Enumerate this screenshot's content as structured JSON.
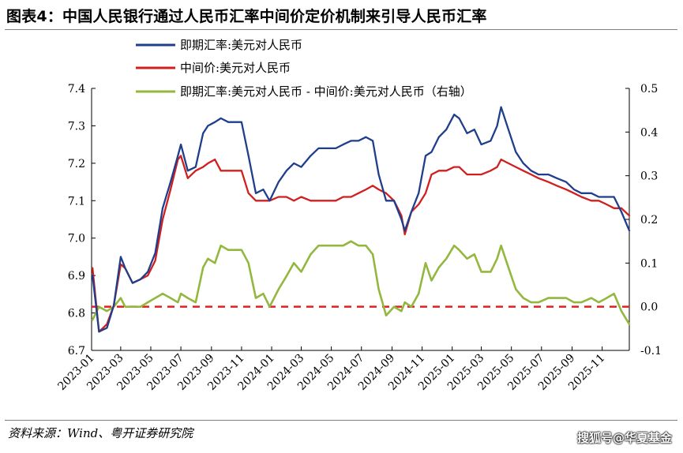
{
  "header": {
    "title": "图表4：中国人民银行通过人民币汇率中间价定价机制来引导人民币汇率"
  },
  "footer": {
    "source": "资料来源：Wind、粤开证券研究院",
    "watermark": "搜狐号@华夏基金"
  },
  "colors": {
    "spot": "#1f3e8c",
    "central": "#d11f1f",
    "spread": "#93b73f",
    "zero_line": "#e02020"
  },
  "chart_data": {
    "type": "line",
    "title": "",
    "xlabel": "",
    "ylabel": "",
    "ylim": [
      6.7,
      7.4
    ],
    "yticks": [
      "7.4",
      "7.3",
      "7.2",
      "7.1",
      "7.0",
      "6.9",
      "6.8",
      "6.7"
    ],
    "y2lim": [
      -0.1,
      0.5
    ],
    "y2ticks": [
      "0.5",
      "0.4",
      "0.3",
      "0.2",
      "0.1",
      "0.0",
      "-0.1"
    ],
    "xticks": [
      "2023-01",
      "2023-03",
      "2023-05",
      "2023-07",
      "2023-09",
      "2023-11",
      "2024-01",
      "2024-03",
      "2024-05",
      "2024-07",
      "2024-09",
      "2024-11",
      "2025-01",
      "2025-03",
      "2025-05",
      "2025-07",
      "2025-09",
      "2025-11"
    ],
    "x_start": "2023-01-01",
    "x_end": "2025-12-26",
    "reference_line": {
      "axis": "right",
      "value": 0.0,
      "style": "dashed"
    },
    "legend_position": "top",
    "series": [
      {
        "name": "即期汇率:美元对人民币",
        "key": "spot",
        "axis": "left",
        "x": [
          "2023-01-03",
          "2023-01-16",
          "2023-02-01",
          "2023-02-15",
          "2023-03-01",
          "2023-03-10",
          "2023-03-25",
          "2023-04-10",
          "2023-04-25",
          "2023-05-10",
          "2023-05-25",
          "2023-06-10",
          "2023-06-25",
          "2023-07-01",
          "2023-07-15",
          "2023-07-31",
          "2023-08-15",
          "2023-08-25",
          "2023-09-08",
          "2023-09-20",
          "2023-10-05",
          "2023-10-20",
          "2023-11-01",
          "2023-11-15",
          "2023-11-30",
          "2023-12-15",
          "2023-12-28",
          "2024-01-15",
          "2024-01-31",
          "2024-02-15",
          "2024-03-01",
          "2024-03-20",
          "2024-04-05",
          "2024-04-20",
          "2024-05-10",
          "2024-05-25",
          "2024-06-10",
          "2024-06-25",
          "2024-07-10",
          "2024-07-24",
          "2024-08-05",
          "2024-08-20",
          "2024-09-05",
          "2024-09-20",
          "2024-09-27",
          "2024-10-10",
          "2024-10-25",
          "2024-11-08",
          "2024-11-20",
          "2024-12-05",
          "2024-12-20",
          "2025-01-05",
          "2025-01-15",
          "2025-01-31",
          "2025-02-15",
          "2025-03-01",
          "2025-03-20",
          "2025-04-02",
          "2025-04-10",
          "2025-04-25",
          "2025-05-10",
          "2025-05-25",
          "2025-06-10",
          "2025-06-25",
          "2025-07-15",
          "2025-08-01",
          "2025-08-20",
          "2025-09-05",
          "2025-09-20",
          "2025-10-10",
          "2025-10-25",
          "2025-11-10",
          "2025-11-25",
          "2025-12-10",
          "2025-12-26"
        ],
        "values": [
          6.9,
          6.75,
          6.76,
          6.82,
          6.95,
          6.92,
          6.88,
          6.89,
          6.91,
          6.96,
          7.08,
          7.15,
          7.22,
          7.25,
          7.18,
          7.19,
          7.28,
          7.3,
          7.31,
          7.32,
          7.31,
          7.31,
          7.31,
          7.22,
          7.12,
          7.13,
          7.1,
          7.15,
          7.18,
          7.2,
          7.19,
          7.22,
          7.24,
          7.24,
          7.24,
          7.25,
          7.26,
          7.26,
          7.27,
          7.26,
          7.17,
          7.1,
          7.1,
          7.05,
          7.02,
          7.07,
          7.12,
          7.22,
          7.23,
          7.27,
          7.29,
          7.33,
          7.32,
          7.28,
          7.29,
          7.25,
          7.26,
          7.3,
          7.35,
          7.29,
          7.23,
          7.2,
          7.18,
          7.17,
          7.17,
          7.16,
          7.15,
          7.13,
          7.12,
          7.12,
          7.11,
          7.11,
          7.11,
          7.07,
          7.02
        ]
      },
      {
        "name": "中间价:美元对人民币",
        "key": "central",
        "axis": "left",
        "x": [
          "2023-01-03",
          "2023-01-16",
          "2023-02-01",
          "2023-02-15",
          "2023-03-01",
          "2023-03-10",
          "2023-03-25",
          "2023-04-10",
          "2023-04-25",
          "2023-05-10",
          "2023-05-25",
          "2023-06-10",
          "2023-06-25",
          "2023-07-01",
          "2023-07-15",
          "2023-07-31",
          "2023-08-15",
          "2023-08-25",
          "2023-09-08",
          "2023-09-20",
          "2023-10-05",
          "2023-10-20",
          "2023-11-01",
          "2023-11-15",
          "2023-11-30",
          "2023-12-15",
          "2023-12-28",
          "2024-01-15",
          "2024-01-31",
          "2024-02-15",
          "2024-03-01",
          "2024-03-20",
          "2024-04-05",
          "2024-04-20",
          "2024-05-10",
          "2024-05-25",
          "2024-06-10",
          "2024-06-25",
          "2024-07-10",
          "2024-07-24",
          "2024-08-05",
          "2024-08-20",
          "2024-09-05",
          "2024-09-20",
          "2024-09-27",
          "2024-10-10",
          "2024-10-25",
          "2024-11-08",
          "2024-11-20",
          "2024-12-05",
          "2024-12-20",
          "2025-01-05",
          "2025-01-15",
          "2025-01-31",
          "2025-02-15",
          "2025-03-01",
          "2025-03-20",
          "2025-04-02",
          "2025-04-10",
          "2025-04-25",
          "2025-05-10",
          "2025-05-25",
          "2025-06-10",
          "2025-06-25",
          "2025-07-15",
          "2025-08-01",
          "2025-08-20",
          "2025-09-05",
          "2025-09-20",
          "2025-10-10",
          "2025-10-25",
          "2025-11-10",
          "2025-11-25",
          "2025-12-10",
          "2025-12-26"
        ],
        "values": [
          6.92,
          6.75,
          6.77,
          6.82,
          6.93,
          6.92,
          6.88,
          6.89,
          6.9,
          6.94,
          7.05,
          7.13,
          7.21,
          7.22,
          7.16,
          7.18,
          7.19,
          7.2,
          7.21,
          7.18,
          7.18,
          7.18,
          7.18,
          7.12,
          7.1,
          7.1,
          7.1,
          7.11,
          7.11,
          7.1,
          7.11,
          7.1,
          7.1,
          7.1,
          7.1,
          7.11,
          7.11,
          7.12,
          7.13,
          7.14,
          7.13,
          7.12,
          7.1,
          7.06,
          7.01,
          7.07,
          7.09,
          7.12,
          7.17,
          7.18,
          7.18,
          7.19,
          7.19,
          7.17,
          7.17,
          7.17,
          7.18,
          7.19,
          7.21,
          7.2,
          7.19,
          7.18,
          7.17,
          7.16,
          7.15,
          7.14,
          7.13,
          7.12,
          7.11,
          7.1,
          7.1,
          7.09,
          7.08,
          7.08,
          7.06
        ]
      },
      {
        "name": "即期汇率:美元对人民币 - 中间价:美元对人民币（右轴）",
        "key": "spread",
        "axis": "right",
        "x": [
          "2023-01-03",
          "2023-01-16",
          "2023-02-01",
          "2023-02-15",
          "2023-03-01",
          "2023-03-10",
          "2023-03-25",
          "2023-04-10",
          "2023-04-25",
          "2023-05-10",
          "2023-05-25",
          "2023-06-10",
          "2023-06-25",
          "2023-07-01",
          "2023-07-15",
          "2023-07-31",
          "2023-08-15",
          "2023-08-25",
          "2023-09-08",
          "2023-09-20",
          "2023-10-05",
          "2023-10-20",
          "2023-11-01",
          "2023-11-15",
          "2023-11-30",
          "2023-12-15",
          "2023-12-28",
          "2024-01-15",
          "2024-01-31",
          "2024-02-15",
          "2024-03-01",
          "2024-03-20",
          "2024-04-05",
          "2024-04-20",
          "2024-05-10",
          "2024-05-25",
          "2024-06-10",
          "2024-06-25",
          "2024-07-10",
          "2024-07-24",
          "2024-08-05",
          "2024-08-20",
          "2024-09-05",
          "2024-09-20",
          "2024-09-27",
          "2024-10-10",
          "2024-10-25",
          "2024-11-08",
          "2024-11-20",
          "2024-12-05",
          "2024-12-20",
          "2025-01-05",
          "2025-01-15",
          "2025-01-31",
          "2025-02-15",
          "2025-03-01",
          "2025-03-20",
          "2025-04-02",
          "2025-04-10",
          "2025-04-25",
          "2025-05-10",
          "2025-05-25",
          "2025-06-10",
          "2025-06-25",
          "2025-07-15",
          "2025-08-01",
          "2025-08-20",
          "2025-09-05",
          "2025-09-20",
          "2025-10-10",
          "2025-10-25",
          "2025-11-10",
          "2025-11-25",
          "2025-12-10",
          "2025-12-26"
        ],
        "values": [
          -0.03,
          0.0,
          -0.01,
          0.0,
          0.02,
          0.0,
          0.0,
          0.0,
          0.01,
          0.02,
          0.03,
          0.02,
          0.01,
          0.03,
          0.02,
          0.01,
          0.09,
          0.11,
          0.1,
          0.14,
          0.13,
          0.13,
          0.13,
          0.1,
          0.02,
          0.03,
          0.0,
          0.04,
          0.07,
          0.1,
          0.08,
          0.12,
          0.14,
          0.14,
          0.14,
          0.14,
          0.15,
          0.14,
          0.14,
          0.12,
          0.04,
          -0.02,
          0.0,
          -0.01,
          0.01,
          0.0,
          0.03,
          0.1,
          0.06,
          0.09,
          0.11,
          0.14,
          0.13,
          0.11,
          0.12,
          0.08,
          0.08,
          0.11,
          0.14,
          0.09,
          0.04,
          0.02,
          0.01,
          0.01,
          0.02,
          0.02,
          0.02,
          0.01,
          0.01,
          0.02,
          0.01,
          0.02,
          0.03,
          -0.01,
          -0.04
        ]
      }
    ]
  }
}
